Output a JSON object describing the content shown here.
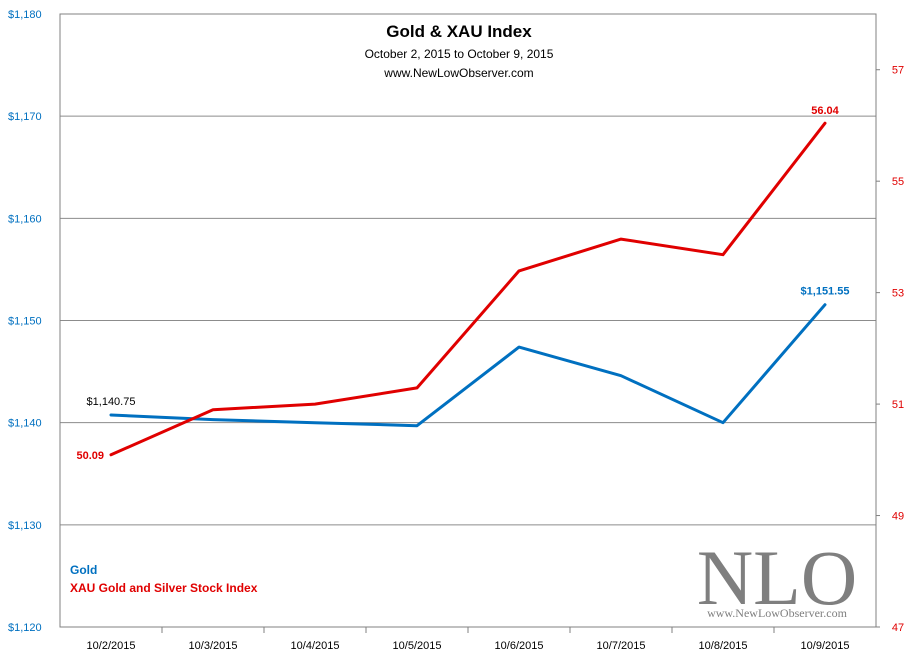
{
  "chart_data": {
    "type": "line",
    "title": "Gold & XAU Index",
    "subtitle": "October 2, 2015  to October 9, 2015",
    "source_text": "www.NewLowObserver.com",
    "categories": [
      "10/2/2015",
      "10/3/2015",
      "10/4/2015",
      "10/5/2015",
      "10/6/2015",
      "10/7/2015",
      "10/8/2015",
      "10/9/2015"
    ],
    "left_axis": {
      "min": 1120,
      "max": 1180,
      "step": 10,
      "tick_labels": [
        "$1,120",
        "$1,130",
        "$1,140",
        "$1,150",
        "$1,160",
        "$1,170",
        "$1,180"
      ],
      "color": "#0070c0"
    },
    "right_axis": {
      "min": 47,
      "max": 58,
      "step": 2,
      "tick_labels": [
        "47",
        "49",
        "51",
        "53",
        "55",
        "57"
      ],
      "color": "#e00000"
    },
    "series": [
      {
        "name": "Gold",
        "axis": "left",
        "color": "#0070c0",
        "values": [
          1140.75,
          1140.3,
          1140.0,
          1139.7,
          1147.4,
          1144.6,
          1140.0,
          1151.55
        ],
        "data_labels": [
          {
            "index": 0,
            "text": "$1,140.75",
            "color": "#000000"
          },
          {
            "index": 7,
            "text": "$1,151.55",
            "color": "#0070c0"
          }
        ]
      },
      {
        "name": "XAU Gold and Silver Stock Index",
        "axis": "right",
        "color": "#e00000",
        "values": [
          50.09,
          50.9,
          51.0,
          51.29,
          53.39,
          53.96,
          53.68,
          56.04
        ],
        "data_labels": [
          {
            "index": 0,
            "text": "50.09",
            "color": "#e00000"
          },
          {
            "index": 7,
            "text": "56.04",
            "color": "#e00000"
          }
        ]
      }
    ],
    "legend_position": "bottom-left",
    "grid": true
  },
  "watermark": {
    "logo_text": "NLO",
    "url_text": "www.NewLowObserver.com"
  }
}
